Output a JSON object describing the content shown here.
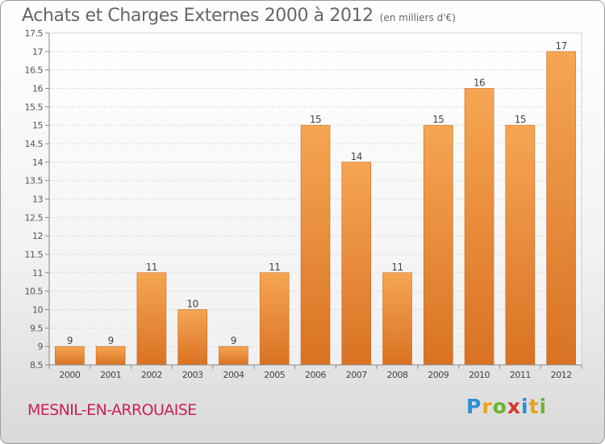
{
  "header": {
    "title": "Achats et Charges Externes 2000 à 2012",
    "subtitle": "(en milliers d'€)"
  },
  "footer": {
    "commune": "MESNIL-EN-ARROUAISE",
    "logo": {
      "letters": [
        "P",
        "r",
        "o",
        "x",
        "i",
        "t",
        "i"
      ],
      "colors": [
        "#2a8fd6",
        "#e8a21b",
        "#6ab42d",
        "#d8342c",
        "#2a8fd6",
        "#e8a21b",
        "#6ab42d"
      ]
    }
  },
  "chart_data": {
    "type": "bar",
    "title": "Achats et Charges Externes 2000 à 2012",
    "subtitle": "(en milliers d'€)",
    "categories": [
      "2000",
      "2001",
      "2002",
      "2003",
      "2004",
      "2005",
      "2006",
      "2007",
      "2008",
      "2009",
      "2010",
      "2011",
      "2012"
    ],
    "values": [
      9,
      9,
      11,
      10,
      9,
      11,
      15,
      14,
      11,
      15,
      16,
      15,
      17
    ],
    "data_labels": [
      "9",
      "9",
      "11",
      "10",
      "9",
      "11",
      "15",
      "14",
      "11",
      "15",
      "16",
      "15",
      "17"
    ],
    "ylim": [
      8.5,
      17.5
    ],
    "yticks": [
      8.5,
      9,
      9.5,
      10,
      10.5,
      11,
      11.5,
      12,
      12.5,
      13,
      13.5,
      14,
      14.5,
      15,
      15.5,
      16,
      16.5,
      17,
      17.5
    ],
    "ytick_labels": [
      "8.5",
      "9",
      "9.5",
      "10",
      "10.5",
      "11",
      "11.5",
      "12",
      "12.5",
      "13",
      "13.5",
      "14",
      "14.5",
      "15",
      "15.5",
      "16",
      "16.5",
      "17",
      "17.5"
    ],
    "grid": true,
    "bar_color_top": "#f6a653",
    "bar_color_bottom": "#d97223",
    "xlabel": "",
    "ylabel": ""
  }
}
